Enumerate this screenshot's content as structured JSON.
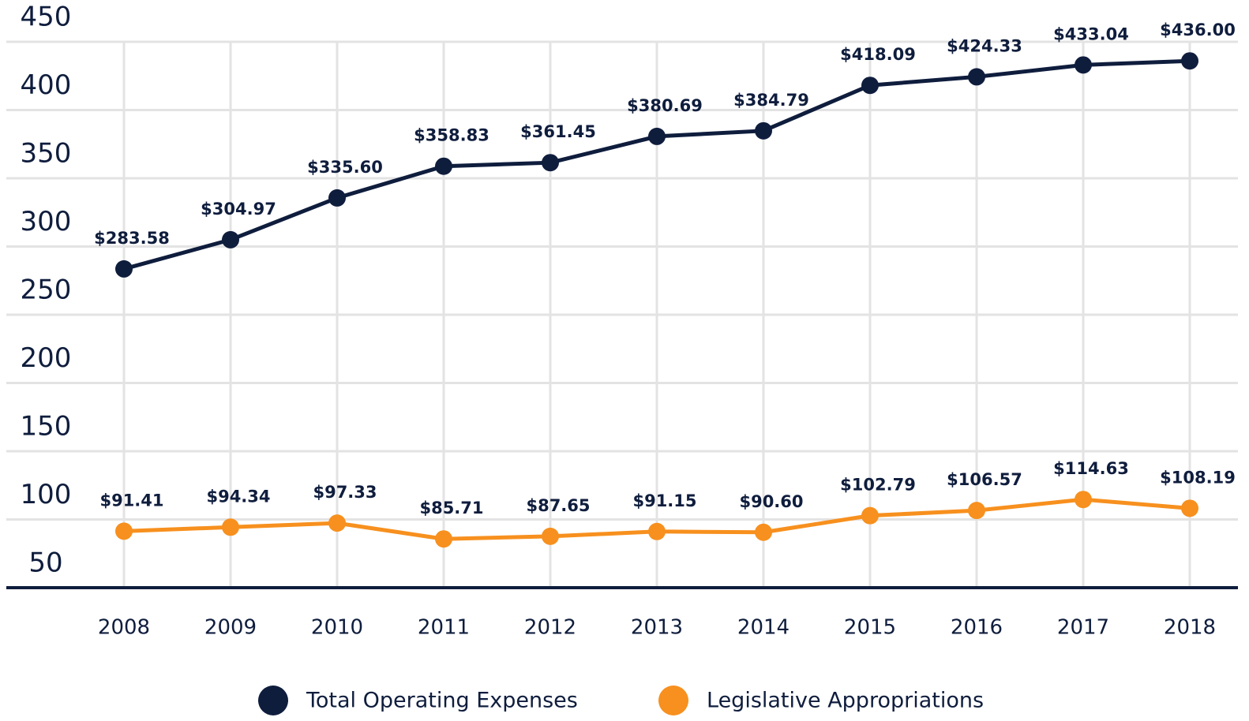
{
  "chart_data": {
    "type": "line",
    "categories": [
      "2008",
      "2009",
      "2010",
      "2011",
      "2012",
      "2013",
      "2014",
      "2015",
      "2016",
      "2017",
      "2018"
    ],
    "series": [
      {
        "name": "Total Operating Expenses",
        "color": "#0f1d3d",
        "values": [
          283.58,
          304.97,
          335.6,
          358.83,
          361.45,
          380.69,
          384.79,
          418.09,
          424.33,
          433.04,
          436.0
        ],
        "value_labels": [
          "$283.58",
          "$304.97",
          "$335.60",
          "$358.83",
          "$361.45",
          "$380.69",
          "$384.79",
          "$418.09",
          "$424.33",
          "$433.04",
          "$436.00"
        ]
      },
      {
        "name": "Legislative Appropriations",
        "color": "#f7901e",
        "values": [
          91.41,
          94.34,
          97.33,
          85.71,
          87.65,
          91.15,
          90.6,
          102.79,
          106.57,
          114.63,
          108.19
        ],
        "value_labels": [
          "$91.41",
          "$94.34",
          "$97.33",
          "$85.71",
          "$87.65",
          "$91.15",
          "$90.60",
          "$102.79",
          "$106.57",
          "$114.63",
          "$108.19"
        ]
      }
    ],
    "ylim": [
      50,
      450
    ],
    "yticks": [
      50,
      100,
      150,
      200,
      250,
      300,
      350,
      400,
      450
    ],
    "grid": true,
    "legend": "bottom"
  }
}
